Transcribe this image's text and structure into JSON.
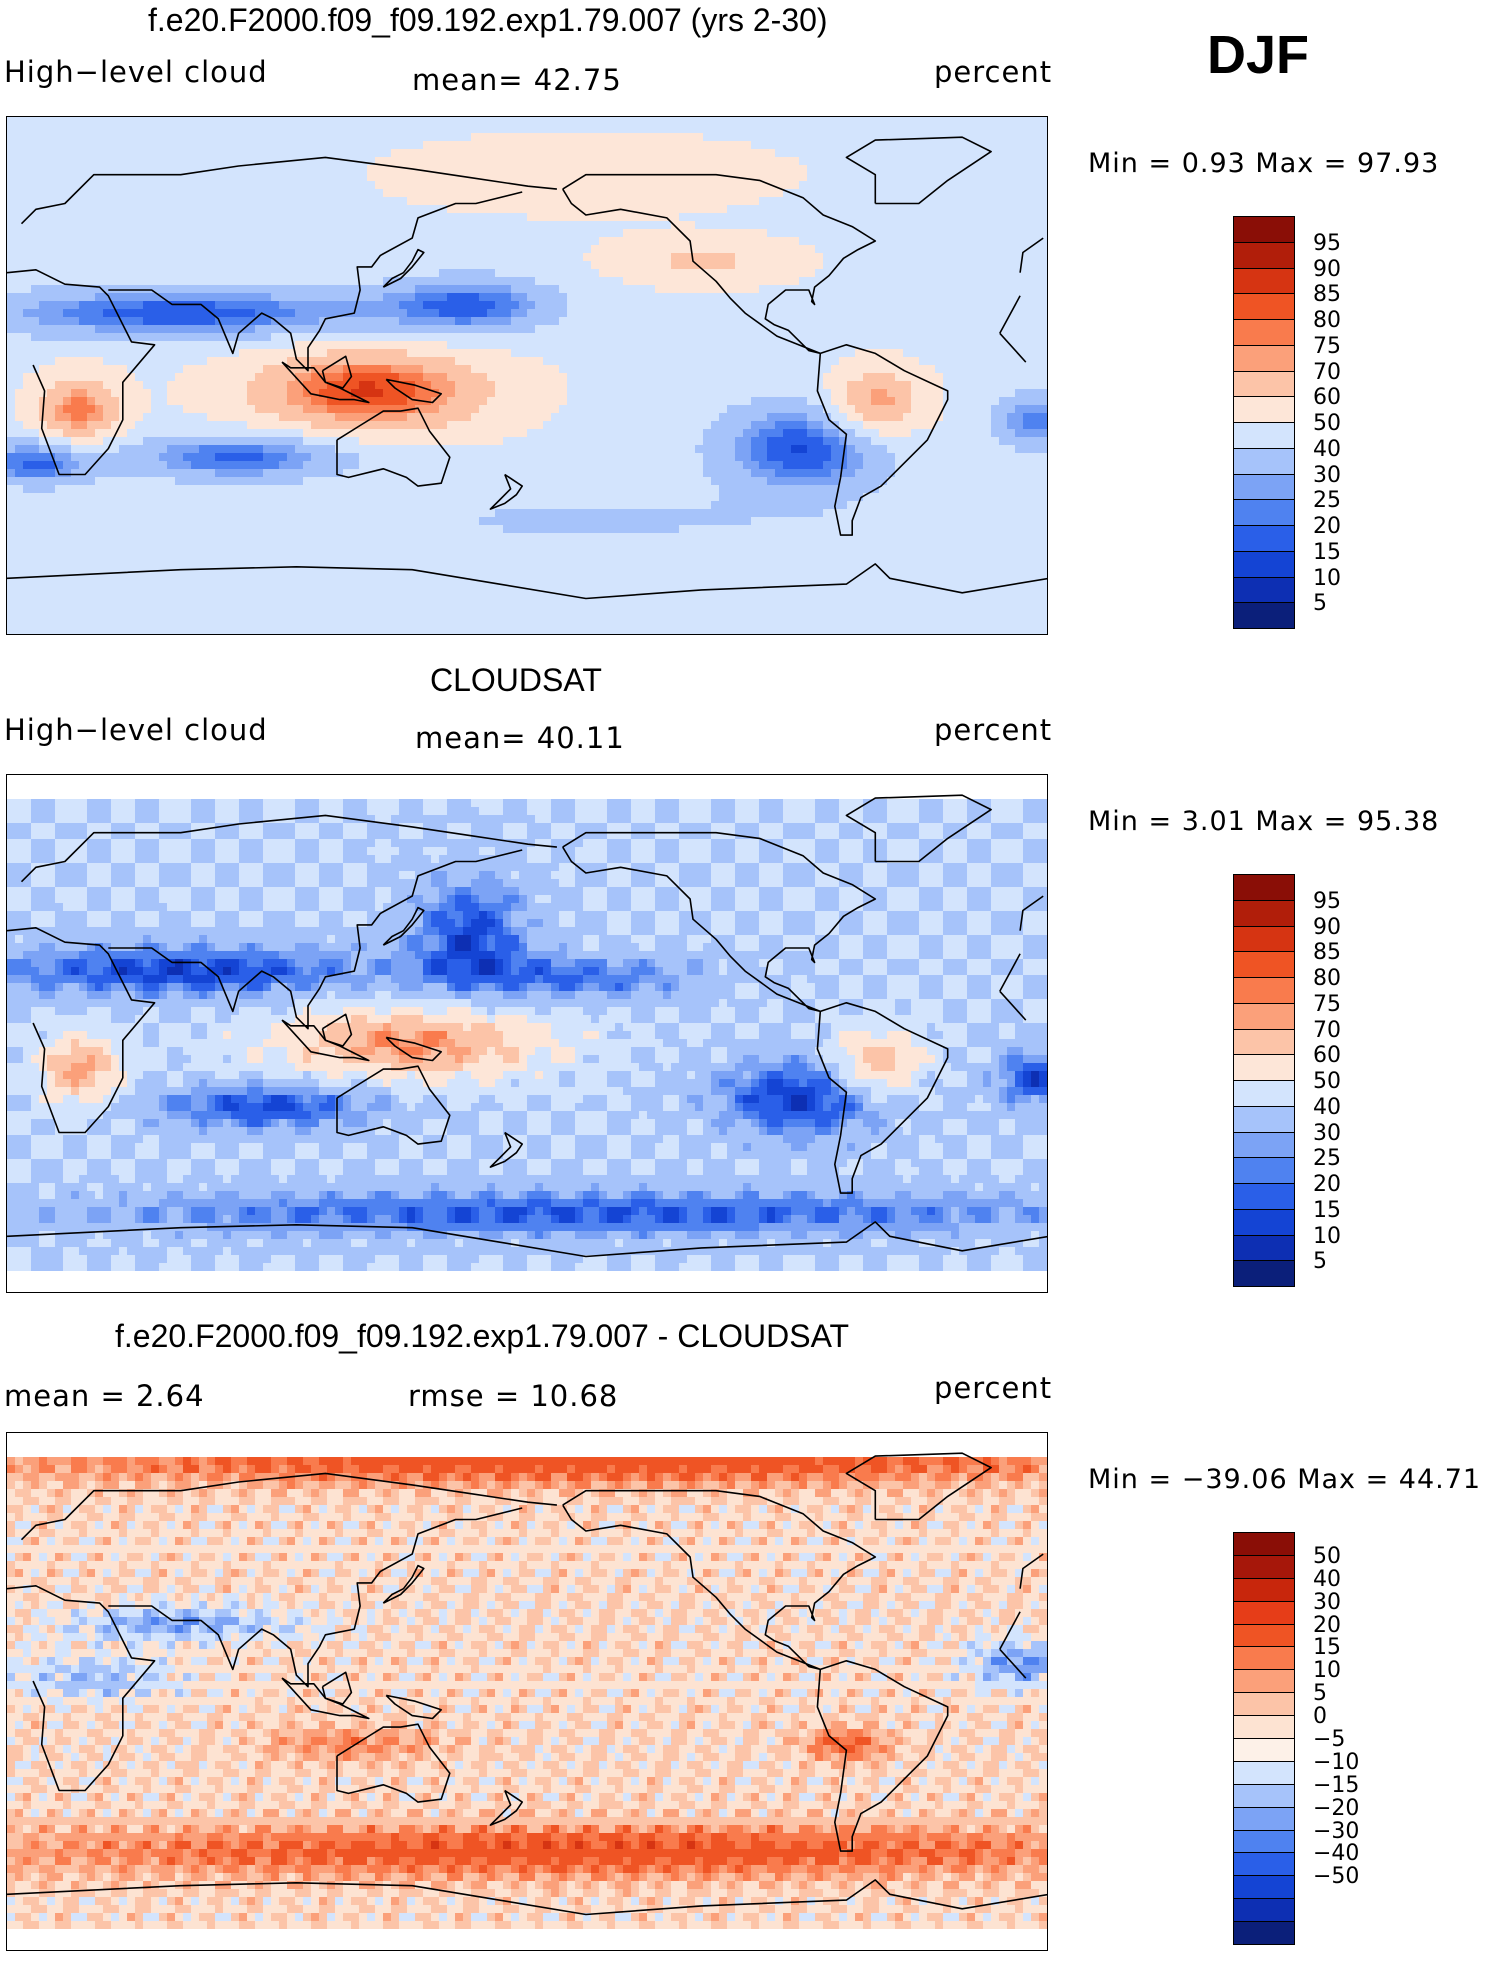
{
  "season_label": "DJF",
  "colors": {
    "ramp_blue_red_16": [
      "#0b1f7a",
      "#0d2fb3",
      "#1444d4",
      "#2a5fe8",
      "#4f82f0",
      "#7ca3f5",
      "#a6c3fa",
      "#d3e4fd",
      "#fde6d8",
      "#fcc4a8",
      "#fba07a",
      "#f97b4d",
      "#ef5424",
      "#d63412",
      "#b11e0a",
      "#8a0e06"
    ],
    "ramp_diff_18": [
      "#0b1f7a",
      "#0d2fb3",
      "#1444d4",
      "#2a5fe8",
      "#4f82f0",
      "#7ca3f5",
      "#a6c3fa",
      "#d3e4fd",
      "#fdf1e8",
      "#fde3d2",
      "#fcc4a8",
      "#fba07a",
      "#f97b4d",
      "#ef5424",
      "#e63d18",
      "#c8260c",
      "#a6170a",
      "#8a0e06"
    ]
  },
  "panels": [
    {
      "title": "f.e20.F2000.f09_f09.192.exp1.79.007 (yrs 2-30)",
      "left_label": "High−level cloud",
      "center_label": "mean=   42.75",
      "right_label": "percent",
      "minmax": "Min =     0.93  Max  =    97.93",
      "colorbar_labels": [
        "95",
        "90",
        "85",
        "80",
        "75",
        "70",
        "60",
        "50",
        "40",
        "30",
        "25",
        "20",
        "15",
        "10",
        "5"
      ],
      "field": "model"
    },
    {
      "title": "CLOUDSAT",
      "left_label": "High−level cloud",
      "center_label": "mean=   40.11",
      "right_label": "percent",
      "minmax": "Min =     3.01  Max  =    95.38",
      "colorbar_labels": [
        "95",
        "90",
        "85",
        "80",
        "75",
        "70",
        "60",
        "50",
        "40",
        "30",
        "25",
        "20",
        "15",
        "10",
        "5"
      ],
      "field": "obs"
    },
    {
      "title": "f.e20.F2000.f09_f09.192.exp1.79.007 - CLOUDSAT",
      "left_label": "mean  =     2.64",
      "center_label": "rmse  =    10.68",
      "right_label": "percent",
      "minmax": "Min  = −39.06  Max  =    44.71",
      "colorbar_labels": [
        "50",
        "40",
        "30",
        "20",
        "15",
        "10",
        "5",
        "0",
        "−5",
        "−10",
        "−15",
        "−20",
        "−30",
        "−40",
        "−50"
      ],
      "field": "diff"
    }
  ]
}
